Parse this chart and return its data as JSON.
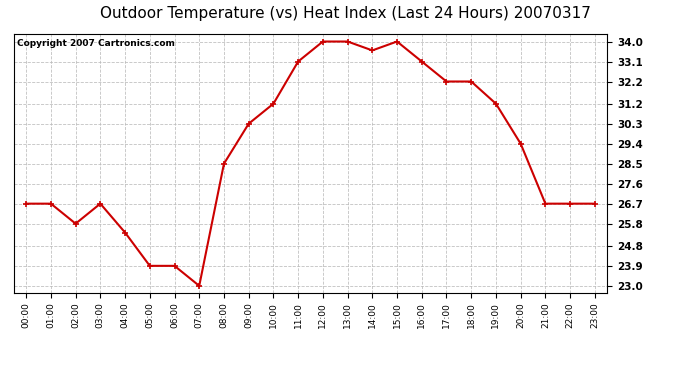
{
  "title": "Outdoor Temperature (vs) Heat Index (Last 24 Hours) 20070317",
  "copyright": "Copyright 2007 Cartronics.com",
  "x_labels": [
    "00:00",
    "01:00",
    "02:00",
    "03:00",
    "04:00",
    "05:00",
    "06:00",
    "07:00",
    "08:00",
    "09:00",
    "10:00",
    "11:00",
    "12:00",
    "13:00",
    "14:00",
    "15:00",
    "16:00",
    "17:00",
    "18:00",
    "19:00",
    "20:00",
    "21:00",
    "22:00",
    "23:00"
  ],
  "y_values": [
    26.7,
    26.7,
    25.8,
    26.7,
    25.4,
    23.9,
    23.9,
    23.0,
    28.5,
    30.3,
    31.2,
    33.1,
    34.0,
    34.0,
    33.6,
    34.0,
    33.1,
    32.2,
    32.2,
    31.2,
    29.4,
    26.7,
    26.7,
    26.7
  ],
  "line_color": "#cc0000",
  "marker": "+",
  "marker_size": 5,
  "marker_linewidth": 1.2,
  "line_width": 1.5,
  "yticks": [
    23.0,
    23.9,
    24.8,
    25.8,
    26.7,
    27.6,
    28.5,
    29.4,
    30.3,
    31.2,
    32.2,
    33.1,
    34.0
  ],
  "ylim": [
    22.7,
    34.35
  ],
  "bg_color": "#ffffff",
  "grid_color": "#bbbbbb",
  "title_fontsize": 11,
  "copyright_fontsize": 6.5,
  "tick_fontsize": 7.5,
  "xtick_fontsize": 6.5
}
